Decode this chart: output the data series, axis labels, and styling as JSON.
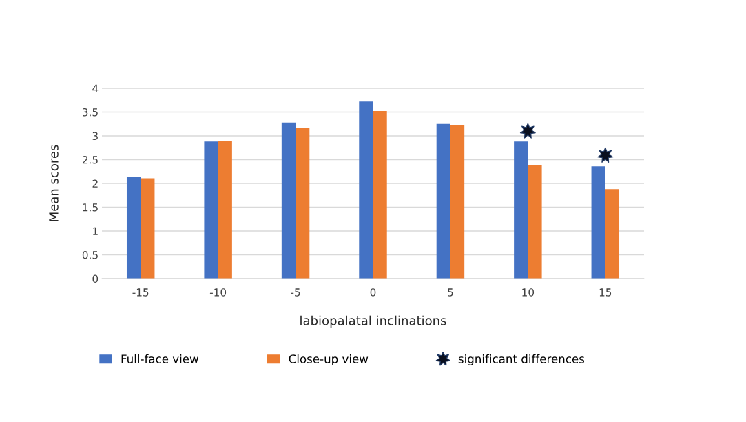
{
  "chart_data": {
    "type": "bar",
    "categories": [
      "-15",
      "-10",
      "-5",
      "0",
      "5",
      "10",
      "15"
    ],
    "series": [
      {
        "name": "Full-face view",
        "color": "#4472c4",
        "values": [
          2.13,
          2.88,
          3.28,
          3.72,
          3.25,
          2.88,
          2.36
        ]
      },
      {
        "name": "Close-up view",
        "color": "#ed7d31",
        "values": [
          2.11,
          2.89,
          3.17,
          3.52,
          3.22,
          2.38,
          1.88
        ]
      },
      {
        "name": "significant differences",
        "type": "scatter",
        "color": "#0a0f1e",
        "marker": "star",
        "x": [
          "10",
          "15"
        ],
        "values": [
          3.1,
          2.59
        ]
      }
    ],
    "xlabel": "labiopalatal inclinations",
    "ylabel": "Mean scores",
    "ylim": [
      0,
      4
    ],
    "yticks": [
      0,
      0.5,
      1,
      1.5,
      2,
      2.5,
      3,
      3.5,
      4
    ],
    "grid": "y",
    "legend": "bottom"
  }
}
